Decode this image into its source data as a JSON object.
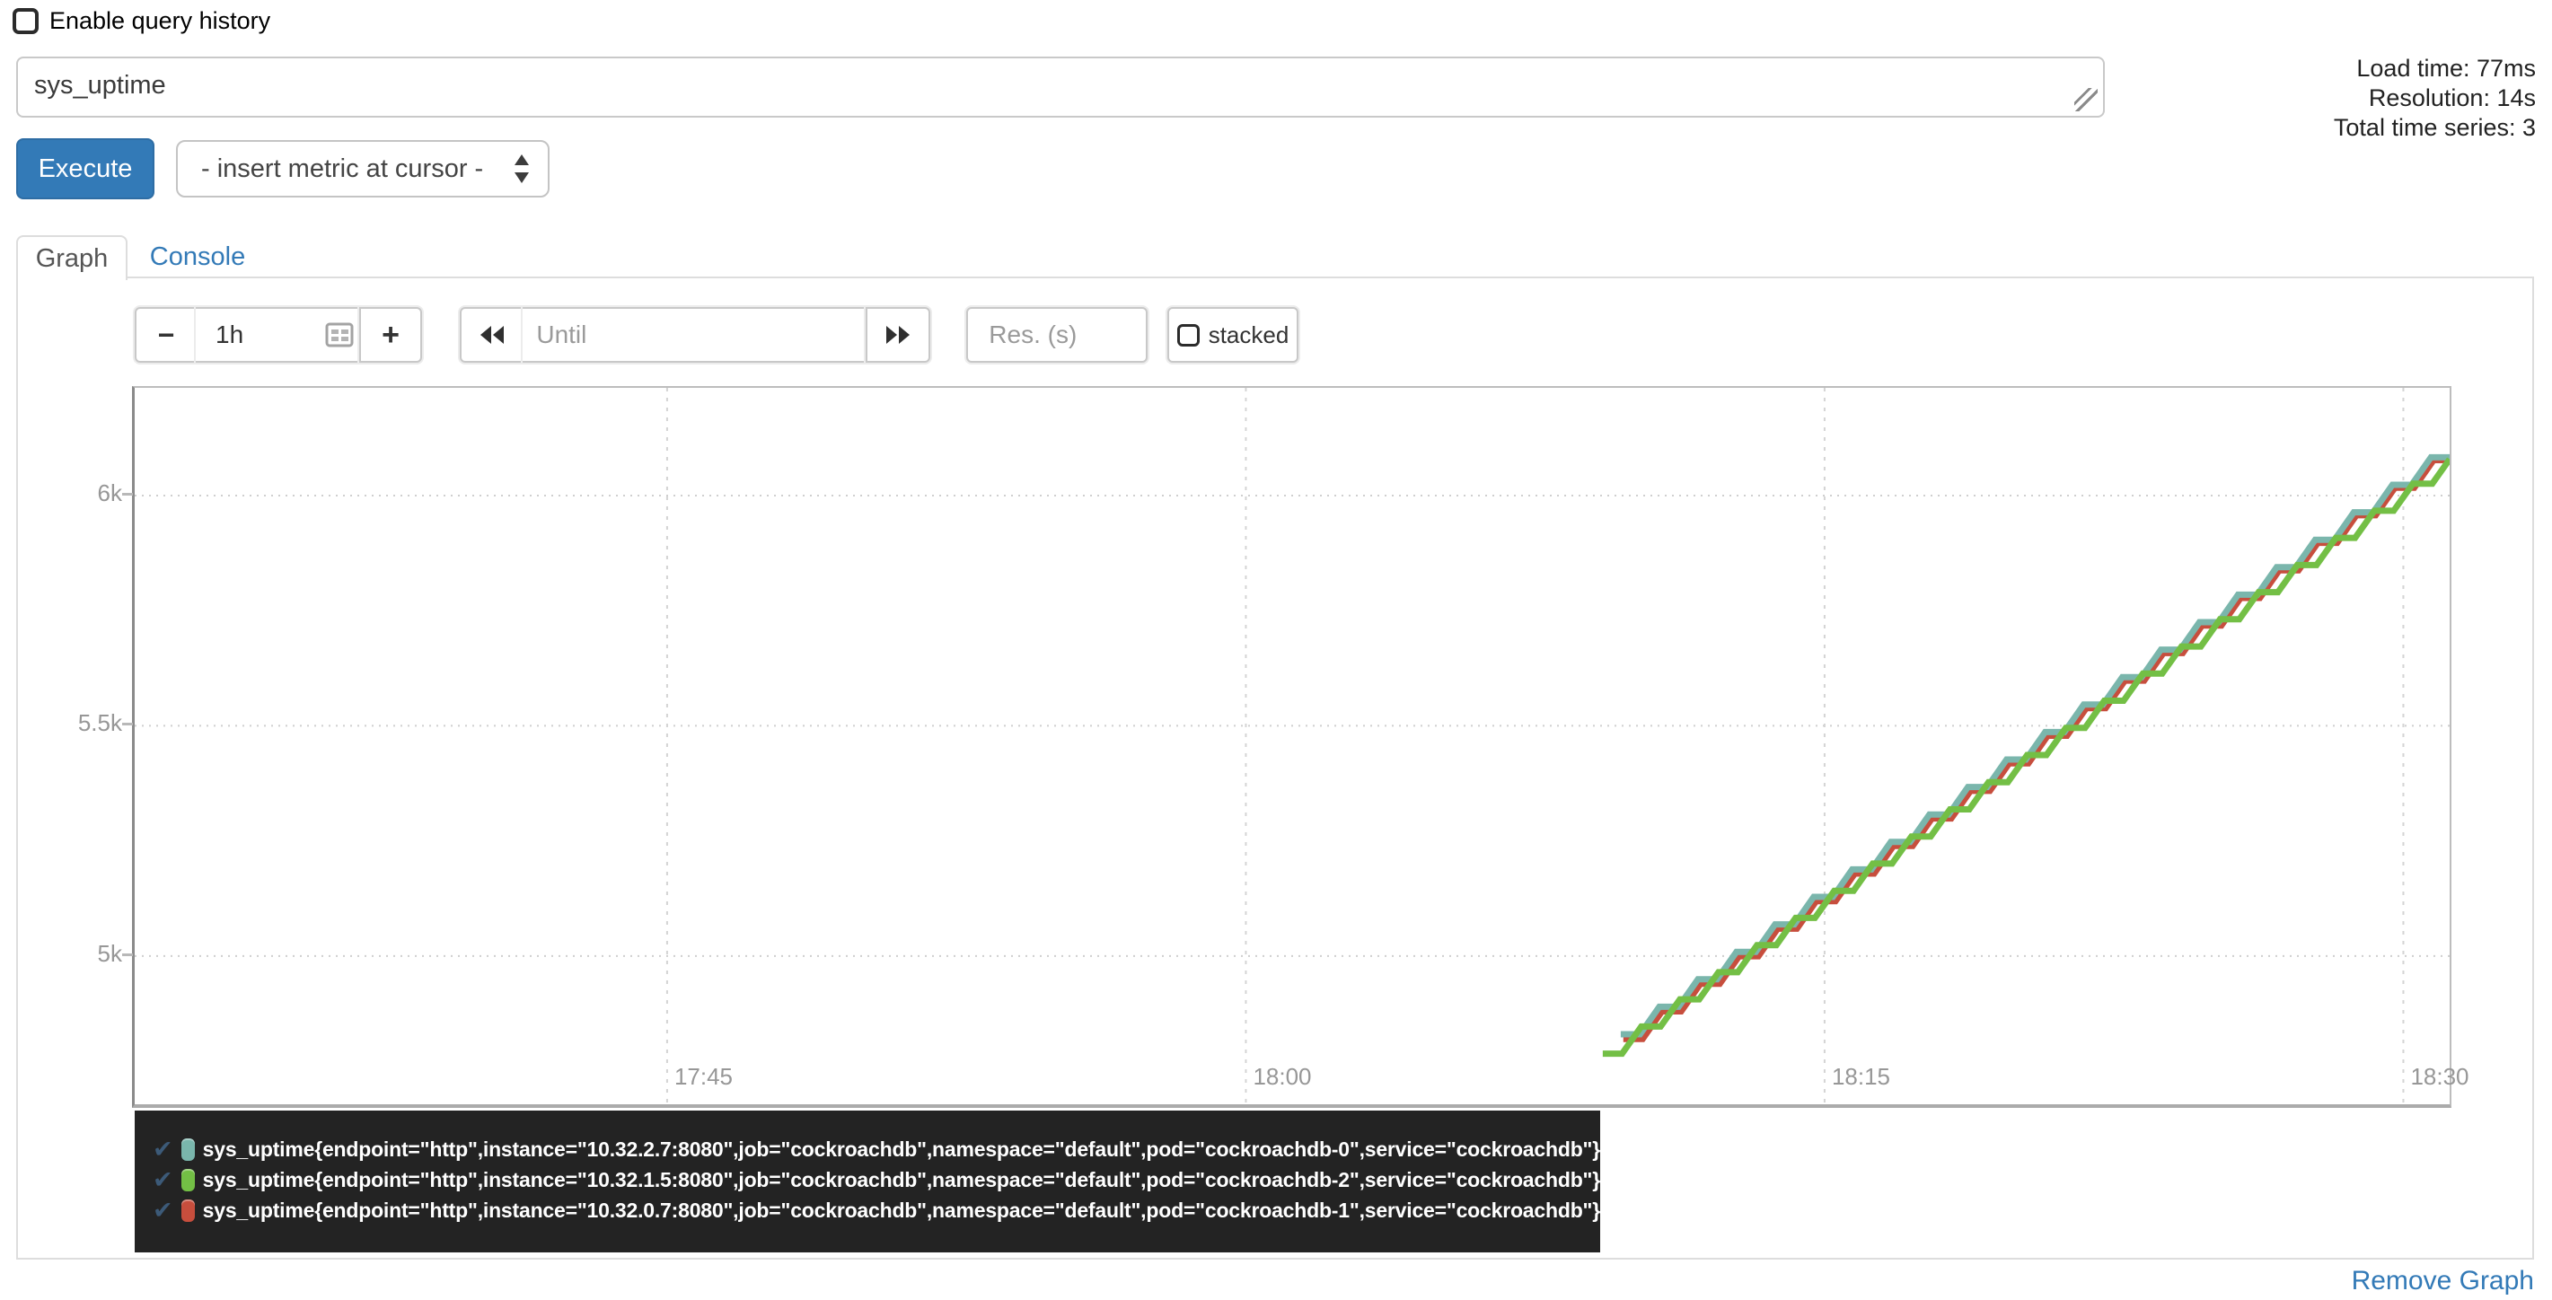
{
  "header": {
    "enable_query_history_label": "Enable query history",
    "query_value": "sys_uptime",
    "stats": {
      "load_time": "Load time: 77ms",
      "resolution": "Resolution: 14s",
      "total_series": "Total time series: 3"
    },
    "execute_label": "Execute",
    "metric_select_value": "- insert metric at cursor -"
  },
  "tabs": [
    {
      "label": "Graph",
      "active": true
    },
    {
      "label": "Console",
      "active": false
    }
  ],
  "graph_controls": {
    "range_decrease_label": "−",
    "range_value": "1h",
    "range_increase_label": "+",
    "until_placeholder": "Until",
    "res_placeholder": "Res. (s)",
    "stacked_label": "stacked"
  },
  "chart_data": {
    "type": "line",
    "x_ticks": [
      {
        "label": "17:45",
        "time": "17:45:00"
      },
      {
        "label": "18:00",
        "time": "18:00:00"
      },
      {
        "label": "18:15",
        "time": "18:15:00"
      },
      {
        "label": "18:30",
        "time": "18:30:00"
      }
    ],
    "y_ticks": [
      {
        "label": "5k",
        "value": 5000
      },
      {
        "label": "5.5k",
        "value": 5500
      },
      {
        "label": "6k",
        "value": 6000
      }
    ],
    "x_range": [
      "17:31:12",
      "18:31:12"
    ],
    "y_range": [
      4678,
      6234
    ],
    "step_seconds": 60,
    "grid": true,
    "legend_position": "bottom",
    "series": [
      {
        "name": "sys_uptime{endpoint=\"http\",instance=\"10.32.2.7:8080\",job=\"cockroachdb\",namespace=\"default\",pod=\"cockroachdb-0\",service=\"cockroachdb\"}",
        "color": "#7ab6ac",
        "start_time": "18:09:43",
        "start_value": 4830,
        "end_time": "18:31:12",
        "end_value": 6112,
        "draw_order": 1
      },
      {
        "name": "sys_uptime{endpoint=\"http\",instance=\"10.32.1.5:8080\",job=\"cockroachdb\",namespace=\"default\",pod=\"cockroachdb-2\",service=\"cockroachdb\"}",
        "color": "#73bf45",
        "start_time": "18:09:15",
        "start_value": 4788,
        "end_time": "18:31:12",
        "end_value": 6082,
        "draw_order": 2
      },
      {
        "name": "sys_uptime{endpoint=\"http\",instance=\"10.32.0.7:8080\",job=\"cockroachdb\",namespace=\"default\",pod=\"cockroachdb-1\",service=\"cockroachdb\"}",
        "color": "#c74e3d",
        "start_time": "18:09:47",
        "start_value": 4820,
        "end_time": "18:31:12",
        "end_value": 6102,
        "draw_order": 0
      }
    ]
  },
  "legend": {
    "check_glyph": "✔"
  },
  "footer": {
    "remove_graph_label": "Remove Graph"
  }
}
